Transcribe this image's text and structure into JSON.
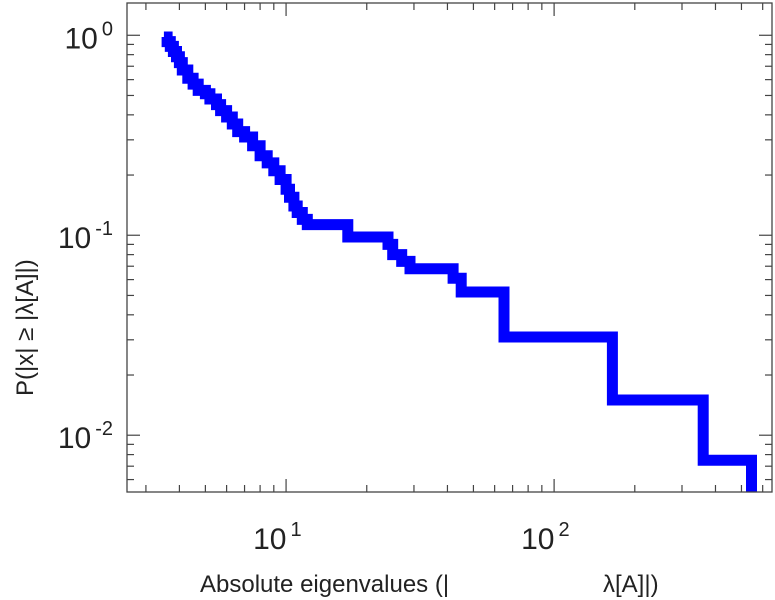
{
  "chart_data": {
    "type": "line",
    "style": "step",
    "x_scale": "log",
    "y_scale": "log",
    "xlabel_text": "Absolute eigenvalues (|",
    "xlabel_symbol": "λ[A]|)",
    "ylabel_text": "P(|x| ≥ |λ[A]|)",
    "xlim": [
      2.55,
      650
    ],
    "ylim": [
      0.0052,
      1.45
    ],
    "x_ticks": [
      {
        "value": 10,
        "base": "10",
        "exp": "1"
      },
      {
        "value": 100,
        "base": "10",
        "exp": "2"
      }
    ],
    "y_ticks": [
      {
        "value": 1,
        "base": "10",
        "exp": "0"
      },
      {
        "value": 0.1,
        "base": "10",
        "exp": "-1"
      },
      {
        "value": 0.01,
        "base": "10",
        "exp": "-2"
      }
    ],
    "grid": false,
    "color": "#0000ff",
    "series": [
      {
        "x": [
          3.5,
          3.6,
          3.7,
          3.8,
          3.9,
          4.0,
          4.1,
          4.3,
          4.5,
          4.7,
          5.0,
          5.2,
          5.5,
          5.7,
          6.0,
          6.3,
          6.6,
          7.0,
          7.5,
          8.0,
          8.5,
          9.0,
          9.5,
          10.0,
          10.3,
          10.7,
          11.0,
          11.5,
          12.0,
          16.0,
          17.0,
          23.0,
          24.0,
          25.0,
          27.0,
          29.0,
          31.0,
          42.0,
          45.0,
          62.0,
          65.0,
          160.0,
          165.0,
          350.0,
          360.0,
          545.0
        ],
        "y": [
          0.98,
          0.93,
          0.88,
          0.83,
          0.78,
          0.73,
          0.67,
          0.61,
          0.57,
          0.53,
          0.51,
          0.48,
          0.45,
          0.42,
          0.39,
          0.36,
          0.33,
          0.31,
          0.28,
          0.25,
          0.23,
          0.21,
          0.19,
          0.17,
          0.155,
          0.14,
          0.13,
          0.12,
          0.113,
          0.113,
          0.098,
          0.098,
          0.09,
          0.08,
          0.074,
          0.068,
          0.068,
          0.061,
          0.052,
          0.052,
          0.031,
          0.031,
          0.015,
          0.015,
          0.0075,
          0.0075
        ]
      }
    ]
  }
}
